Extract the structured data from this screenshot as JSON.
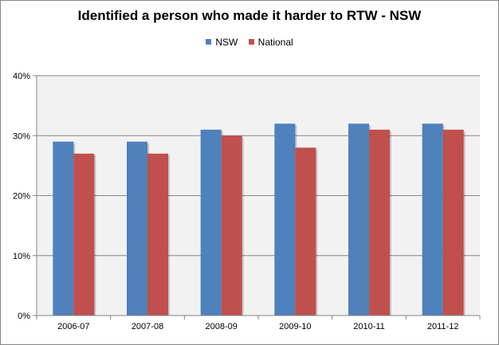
{
  "chart_data": {
    "type": "bar",
    "title": "Identified a person who made it harder to RTW - NSW",
    "categories": [
      "2006-07",
      "2007-08",
      "2008-09",
      "2009-10",
      "2010-11",
      "2011-12"
    ],
    "series": [
      {
        "name": "NSW",
        "color": "#4F81BD",
        "values": [
          29,
          29,
          31,
          32,
          32,
          32
        ]
      },
      {
        "name": "National",
        "color": "#C0504D",
        "values": [
          27,
          27,
          30,
          28,
          31,
          31
        ]
      }
    ],
    "ylim": [
      0,
      40
    ],
    "yticks": [
      "0%",
      "10%",
      "20%",
      "30%",
      "40%"
    ],
    "grid": true,
    "legend_position": "top",
    "plot_background": "#F2F2F2"
  }
}
